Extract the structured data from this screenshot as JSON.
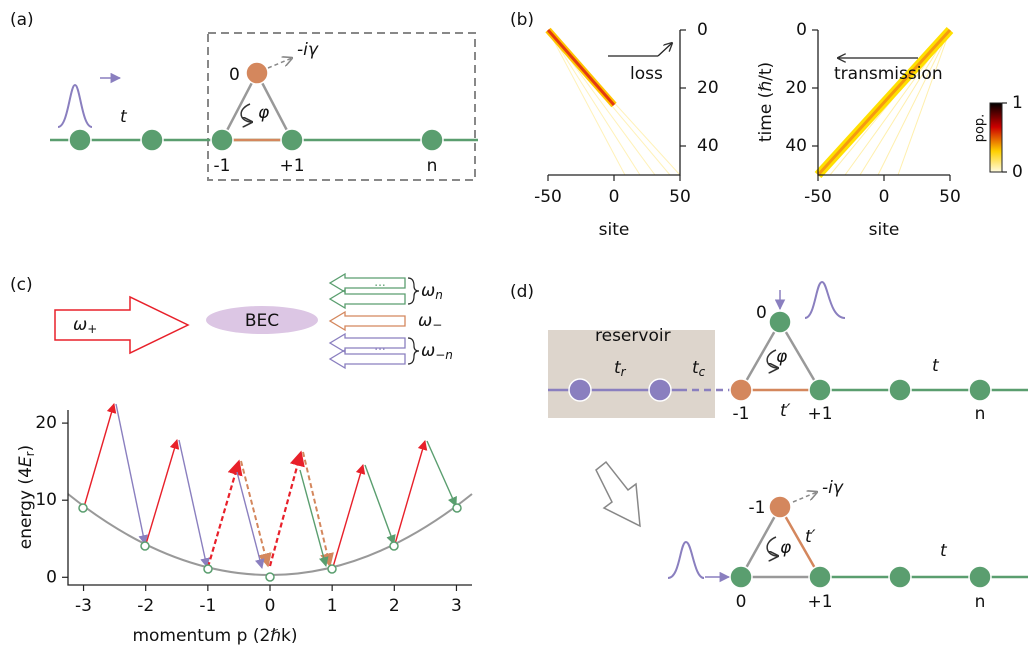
{
  "panels": {
    "a": {
      "label": "(a)",
      "hopping": "t",
      "site_0": "0",
      "loss": "-iγ",
      "flux": "φ",
      "site_m1": "-1",
      "site_p1": "+1",
      "site_n": "n"
    },
    "b": {
      "label": "(b)",
      "left_xlabel": "site",
      "right_xlabel": "site",
      "left_annotation": "loss",
      "right_annotation": "transmission",
      "xlim": [
        -50,
        50
      ],
      "xticks": [
        -50,
        0,
        50
      ],
      "ylim": [
        0,
        50
      ],
      "yticks": [
        0,
        20,
        40
      ],
      "ylabel": "time (ℏ/t)",
      "colorbar": {
        "label": "pop.",
        "lim": [
          0,
          1
        ],
        "ticks": [
          0,
          1
        ]
      }
    },
    "c": {
      "label": "(c)",
      "pump": {
        "symbol": "ω",
        "sub": "+"
      },
      "bec": "BEC",
      "out_n": {
        "symbol": "ω",
        "sub": "n"
      },
      "out_minus": {
        "symbol": "ω",
        "sub": "−"
      },
      "out_mn": {
        "symbol": "ω",
        "sub": "−n"
      },
      "dots": "···",
      "xlabel": "momentum p (2ℏk)",
      "ylabel": {
        "start": "energy (4",
        "var": "E",
        "sub": "r",
        "end": ")"
      },
      "xlim": [
        -3.25,
        3.25
      ],
      "xticks": [
        -3,
        -2,
        -1,
        0,
        1,
        2,
        3
      ],
      "ylim": [
        -1,
        21.7
      ],
      "yticks": [
        0,
        10,
        20
      ]
    },
    "d": {
      "label": "(d)",
      "reservoir": "reservoir",
      "t_r": {
        "base": "t",
        "sub": "r"
      },
      "t_c": {
        "base": "t",
        "sub": "c"
      },
      "hopping": "t",
      "hopping_prime": "t′",
      "flux": "φ",
      "site_0": "0",
      "site_m1": "-1",
      "site_p1": "+1",
      "site_n": "n",
      "lower": {
        "site_m1": "-1",
        "loss": "-iγ",
        "hopping_prime": "t′",
        "flux": "φ",
        "hopping": "t",
        "site_0": "0",
        "site_p1": "+1",
        "site_n": "n"
      }
    }
  }
}
